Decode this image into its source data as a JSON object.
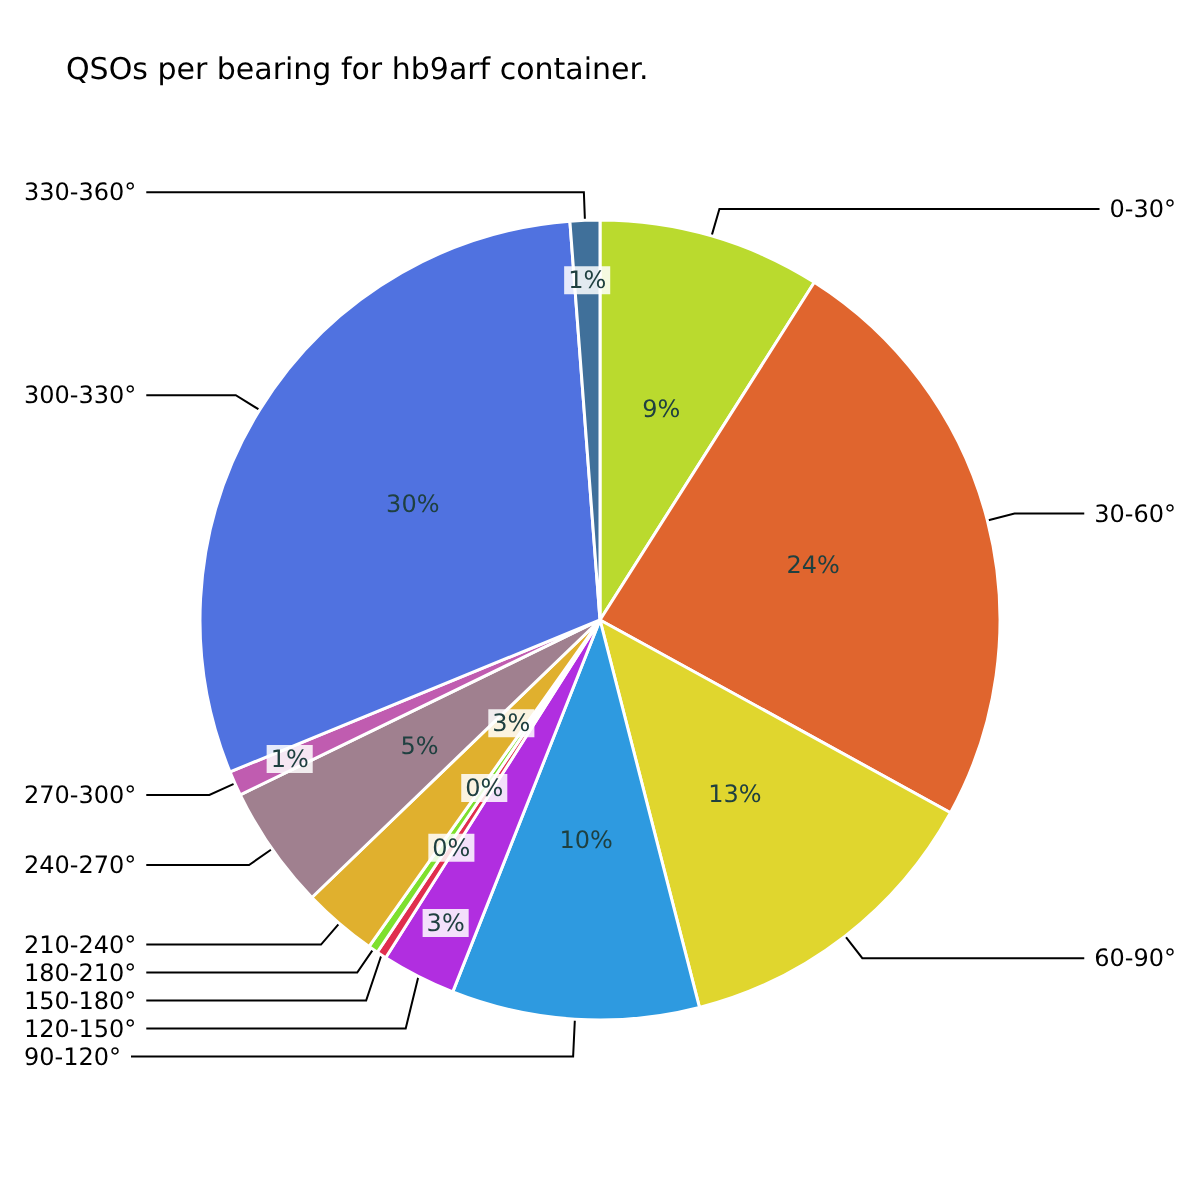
{
  "chart_data": {
    "type": "pie",
    "title": "QSOs per bearing for hb9arf container.",
    "categories": [
      "0-30°",
      "30-60°",
      "60-90°",
      "90-120°",
      "120-150°",
      "150-180°",
      "180-210°",
      "210-240°",
      "240-270°",
      "270-300°",
      "300-330°",
      "330-360°"
    ],
    "values": [
      9,
      24,
      13,
      10,
      3,
      0.4,
      0.4,
      3,
      5,
      1,
      30,
      1.2
    ],
    "value_labels": [
      "9%",
      "24%",
      "13%",
      "10%",
      "3%",
      "0%",
      "0%",
      "3%",
      "5%",
      "1%",
      "30%",
      "1%"
    ],
    "colors": [
      "#bada2e",
      "#e0652e",
      "#e0d62e",
      "#2e9ae0",
      "#b12ee0",
      "#e02e4e",
      "#7ee02e",
      "#e0b02e",
      "#a0808f",
      "#c05cb0",
      "#5072e0",
      "#40709a"
    ],
    "legend": false
  }
}
